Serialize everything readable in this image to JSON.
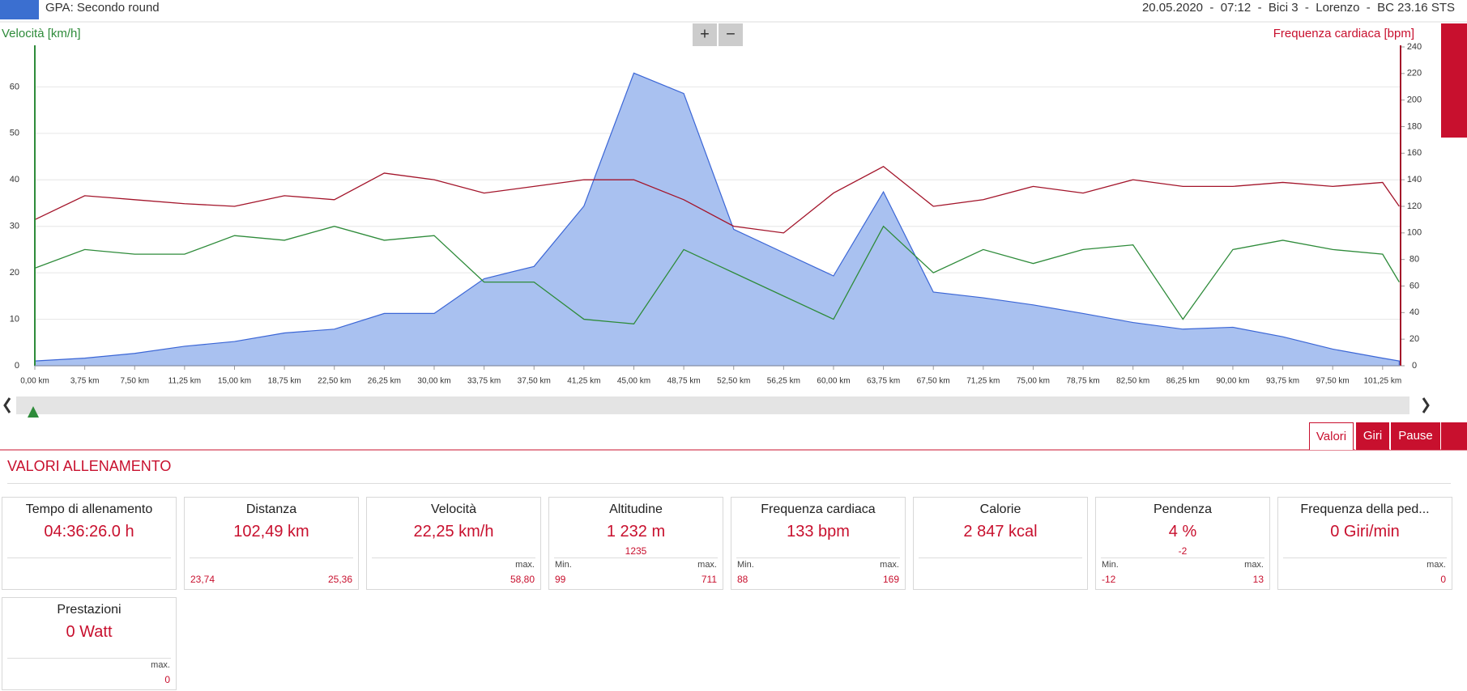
{
  "header": {
    "title": "GPA: Secondo round",
    "info": "20.05.2020  -  07:12  -  Bici 3  -  Lorenzo  -  BC 23.16 STS"
  },
  "controls": {
    "zoom_in": "+",
    "zoom_out": "−"
  },
  "chart_data": {
    "type": "line",
    "ylabel": "Velocità [km/h]",
    "y2label": "Frequenza cardiaca [bpm]",
    "x": [
      0,
      3.75,
      7.5,
      11.25,
      15,
      18.75,
      22.5,
      26.25,
      30,
      33.75,
      37.5,
      41.25,
      45,
      48.75,
      52.5,
      56.25,
      60,
      63.75,
      67.5,
      71.25,
      75,
      78.75,
      82.5,
      86.25,
      90,
      93.75,
      97.5,
      101.25,
      102.5
    ],
    "xlim": [
      0,
      102.6
    ],
    "xticks": [
      {
        "value": 0,
        "label": "0,00 km"
      },
      {
        "value": 3.75,
        "label": "3,75 km"
      },
      {
        "value": 7.5,
        "label": "7,50 km"
      },
      {
        "value": 11.25,
        "label": "11,25 km"
      },
      {
        "value": 15,
        "label": "15,00 km"
      },
      {
        "value": 18.75,
        "label": "18,75 km"
      },
      {
        "value": 22.5,
        "label": "22,50 km"
      },
      {
        "value": 26.25,
        "label": "26,25 km"
      },
      {
        "value": 30,
        "label": "30,00 km"
      },
      {
        "value": 33.75,
        "label": "33,75 km"
      },
      {
        "value": 37.5,
        "label": "37,50 km"
      },
      {
        "value": 41.25,
        "label": "41,25 km"
      },
      {
        "value": 45,
        "label": "45,00 km"
      },
      {
        "value": 48.75,
        "label": "48,75 km"
      },
      {
        "value": 52.5,
        "label": "52,50 km"
      },
      {
        "value": 56.25,
        "label": "56,25 km"
      },
      {
        "value": 60,
        "label": "60,00 km"
      },
      {
        "value": 63.75,
        "label": "63,75 km"
      },
      {
        "value": 67.5,
        "label": "67,50 km"
      },
      {
        "value": 71.25,
        "label": "71,25 km"
      },
      {
        "value": 75,
        "label": "75,00 km"
      },
      {
        "value": 78.75,
        "label": "78,75 km"
      },
      {
        "value": 82.5,
        "label": "82,50 km"
      },
      {
        "value": 86.25,
        "label": "86,25 km"
      },
      {
        "value": 90,
        "label": "90,00 km"
      },
      {
        "value": 93.75,
        "label": "93,75 km"
      },
      {
        "value": 97.5,
        "label": "97,50 km"
      },
      {
        "value": 101.25,
        "label": "101,25 km"
      }
    ],
    "ylim": [
      0,
      68.6
    ],
    "yticks": [
      0,
      10,
      20,
      30,
      40,
      50,
      60
    ],
    "y2lim": [
      0,
      240
    ],
    "y2ticks": [
      0,
      20,
      40,
      60,
      80,
      100,
      120,
      140,
      160,
      180,
      200,
      220,
      240
    ],
    "y3lim": [
      89,
      760
    ],
    "grid": true,
    "series": [
      {
        "name": "Altitudine",
        "axis": "y3",
        "style": "area",
        "color": "#3b66d6",
        "fill": "#a9c1f0",
        "values": [
          99,
          105,
          115,
          130,
          140,
          158,
          166,
          199,
          199,
          272,
          298,
          425,
          705,
          662,
          376,
          327,
          278,
          455,
          244,
          232,
          217,
          199,
          180,
          166,
          170,
          150,
          124,
          105,
          99
        ]
      },
      {
        "name": "Velocità",
        "axis": "y",
        "style": "line",
        "color": "#2e8b3a",
        "values": [
          21,
          25,
          24,
          24,
          28,
          27,
          30,
          27,
          28,
          18,
          18,
          10,
          9,
          25,
          20,
          15,
          10,
          30,
          20,
          25,
          22,
          25,
          26,
          10,
          25,
          27,
          25,
          24,
          18
        ]
      },
      {
        "name": "Frequenza cardiaca",
        "axis": "y2",
        "style": "line",
        "color": "#a3142a",
        "values": [
          110,
          128,
          125,
          122,
          120,
          128,
          125,
          145,
          140,
          130,
          135,
          140,
          140,
          125,
          105,
          100,
          130,
          150,
          120,
          125,
          135,
          130,
          140,
          135,
          135,
          138,
          135,
          138,
          120
        ]
      }
    ]
  },
  "tabs": [
    "Valori",
    "Giri",
    "Pause"
  ],
  "section_title": "VALORI ALLENAMENTO",
  "cards": [
    {
      "title": "Tempo di allenamento",
      "value": "04:36:26.0 h"
    },
    {
      "title": "Distanza",
      "value": "102,49 km",
      "left_value": "23,74",
      "right_value": "25,36"
    },
    {
      "title": "Velocità",
      "value": "22,25 km/h",
      "right_label": "max.",
      "right_value": "58,80"
    },
    {
      "title": "Altitudine",
      "value": "1 232 m",
      "sub": "1235",
      "left_label": "Min.",
      "left_value": "99",
      "right_label": "max.",
      "right_value": "711"
    },
    {
      "title": "Frequenza cardiaca",
      "value": "133 bpm",
      "left_label": "Min.",
      "left_value": "88",
      "right_label": "max.",
      "right_value": "169"
    },
    {
      "title": "Calorie",
      "value": "2 847 kcal"
    },
    {
      "title": "Pendenza",
      "value": "4 %",
      "sub": "-2",
      "left_label": "Min.",
      "left_value": "-12",
      "right_label": "max.",
      "right_value": "13"
    },
    {
      "title": "Frequenza della ped...",
      "value": "0 Giri/min",
      "right_label": "max.",
      "right_value": "0"
    },
    {
      "title": "Prestazioni",
      "value": "0 Watt",
      "right_label": "max.",
      "right_value": "0"
    }
  ]
}
